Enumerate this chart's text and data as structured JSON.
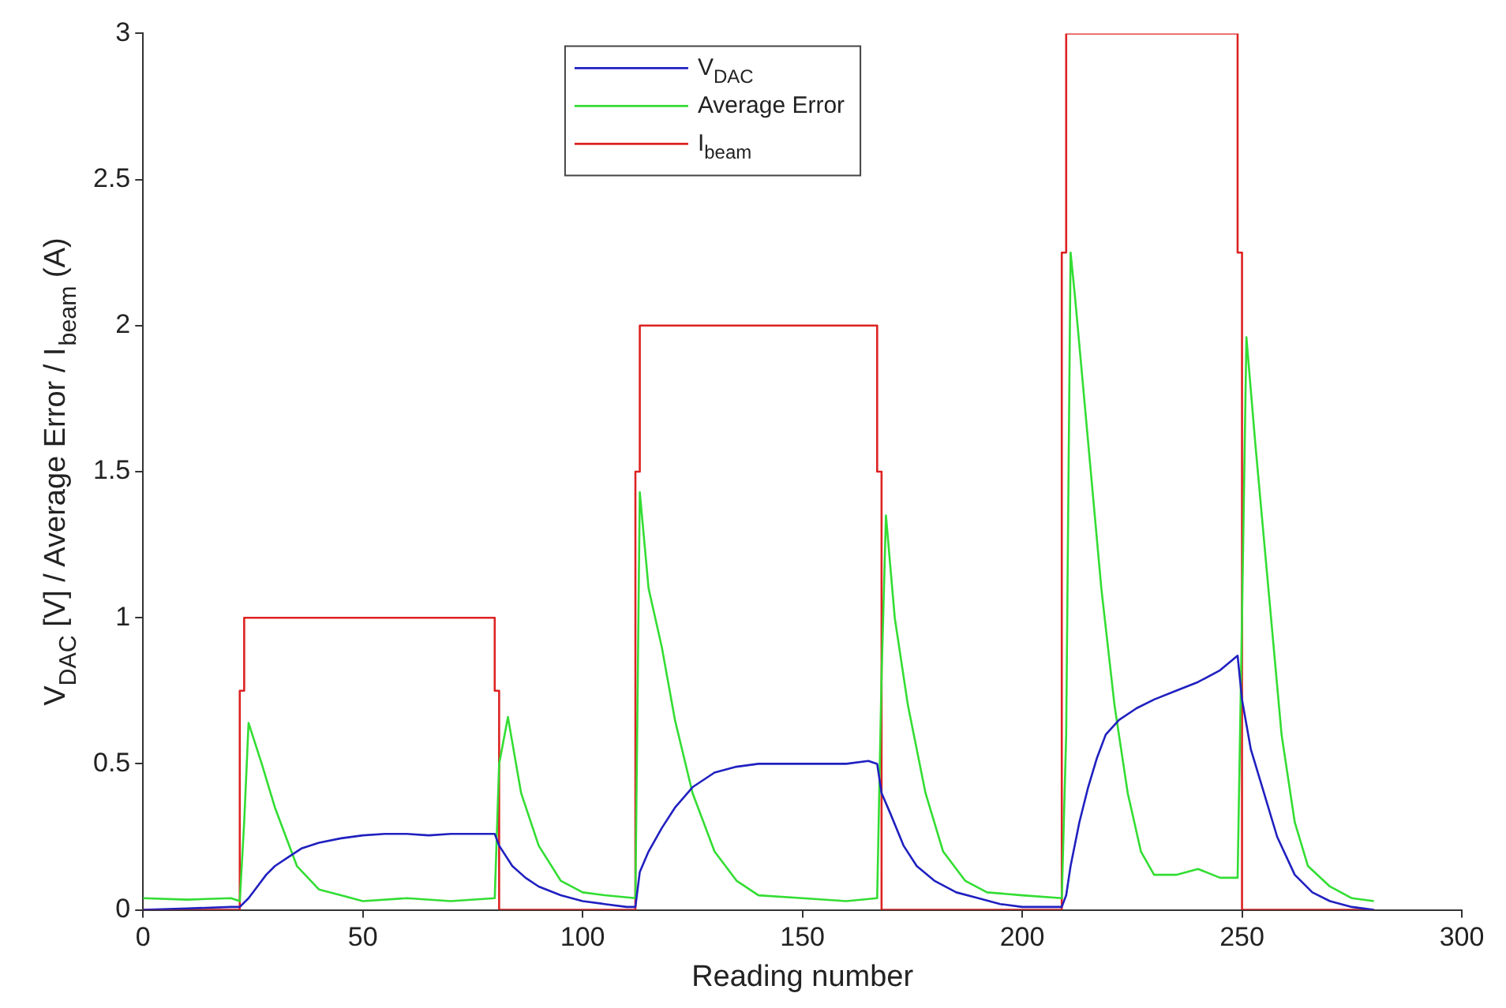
{
  "chart_data": {
    "type": "line",
    "xlabel": "Reading number",
    "ylabel": "V$_{DAC}$ [V] / Average Error / I$_{beam}$ (A)",
    "xlim": [
      0,
      300
    ],
    "ylim": [
      0,
      3
    ],
    "xticks": [
      0,
      50,
      100,
      150,
      200,
      250,
      300
    ],
    "yticks": [
      0,
      0.5,
      1,
      1.5,
      2,
      2.5,
      3
    ],
    "grid": false,
    "legend": "top",
    "marker": "none",
    "line_style": "solid",
    "series": [
      {
        "name": "V$_{DAC}$",
        "color": "#2020c0",
        "x": [
          0,
          10,
          20,
          22,
          24,
          26,
          28,
          30,
          33,
          36,
          40,
          45,
          50,
          55,
          60,
          65,
          70,
          75,
          80,
          81,
          84,
          87,
          90,
          95,
          100,
          105,
          110,
          112,
          113,
          115,
          118,
          121,
          125,
          130,
          135,
          140,
          150,
          160,
          165,
          167,
          168,
          170,
          173,
          176,
          180,
          185,
          190,
          195,
          200,
          209,
          210,
          211,
          213,
          215,
          217,
          219,
          222,
          226,
          230,
          235,
          240,
          245,
          249,
          250,
          252,
          255,
          258,
          262,
          266,
          270,
          275,
          280
        ],
        "values": [
          0,
          0.005,
          0.01,
          0.01,
          0.04,
          0.08,
          0.12,
          0.15,
          0.18,
          0.21,
          0.23,
          0.245,
          0.255,
          0.26,
          0.26,
          0.255,
          0.26,
          0.26,
          0.26,
          0.22,
          0.15,
          0.11,
          0.08,
          0.05,
          0.03,
          0.02,
          0.01,
          0.01,
          0.13,
          0.2,
          0.28,
          0.35,
          0.42,
          0.47,
          0.49,
          0.5,
          0.5,
          0.5,
          0.51,
          0.5,
          0.4,
          0.33,
          0.22,
          0.15,
          0.1,
          0.06,
          0.04,
          0.02,
          0.01,
          0.01,
          0.05,
          0.15,
          0.3,
          0.42,
          0.52,
          0.6,
          0.65,
          0.69,
          0.72,
          0.75,
          0.78,
          0.82,
          0.87,
          0.72,
          0.55,
          0.4,
          0.25,
          0.12,
          0.06,
          0.03,
          0.01,
          0
        ]
      },
      {
        "name": "Average Error",
        "color": "#33dd33",
        "x": [
          0,
          10,
          20,
          22,
          23,
          24,
          27,
          30,
          35,
          40,
          45,
          50,
          60,
          70,
          80,
          81,
          83,
          86,
          90,
          95,
          100,
          105,
          112,
          113,
          115,
          118,
          121,
          125,
          130,
          135,
          140,
          150,
          160,
          167,
          168,
          169,
          171,
          174,
          178,
          182,
          187,
          192,
          200,
          209,
          210,
          211,
          212,
          215,
          218,
          221,
          224,
          227,
          230,
          235,
          240,
          245,
          249,
          250,
          251,
          253,
          256,
          259,
          262,
          265,
          270,
          275,
          280
        ],
        "values": [
          0.04,
          0.035,
          0.04,
          0.03,
          0.3,
          0.64,
          0.5,
          0.35,
          0.15,
          0.07,
          0.05,
          0.03,
          0.04,
          0.03,
          0.04,
          0.5,
          0.66,
          0.4,
          0.22,
          0.1,
          0.06,
          0.05,
          0.04,
          1.43,
          1.1,
          0.9,
          0.65,
          0.4,
          0.2,
          0.1,
          0.05,
          0.04,
          0.03,
          0.04,
          0.8,
          1.35,
          1.0,
          0.7,
          0.4,
          0.2,
          0.1,
          0.06,
          0.05,
          0.04,
          0.6,
          2.25,
          2.1,
          1.6,
          1.1,
          0.7,
          0.4,
          0.2,
          0.12,
          0.12,
          0.14,
          0.11,
          0.11,
          1.0,
          1.96,
          1.6,
          1.1,
          0.6,
          0.3,
          0.15,
          0.08,
          0.04,
          0.03
        ]
      },
      {
        "name": "I$_{beam}$",
        "color": "#dd2222",
        "x": [
          0,
          22,
          22,
          23,
          23,
          80,
          80,
          81,
          81,
          112,
          112,
          113,
          113,
          167,
          167,
          168,
          168,
          209,
          209,
          210,
          210,
          249,
          249,
          250,
          250,
          280
        ],
        "values": [
          0,
          0,
          0.75,
          0.75,
          1,
          1,
          0.75,
          0.75,
          0,
          0,
          1.5,
          1.5,
          2,
          2,
          1.5,
          1.5,
          0,
          0,
          2.25,
          2.25,
          3,
          3,
          2.25,
          2.25,
          0,
          0
        ]
      }
    ]
  }
}
